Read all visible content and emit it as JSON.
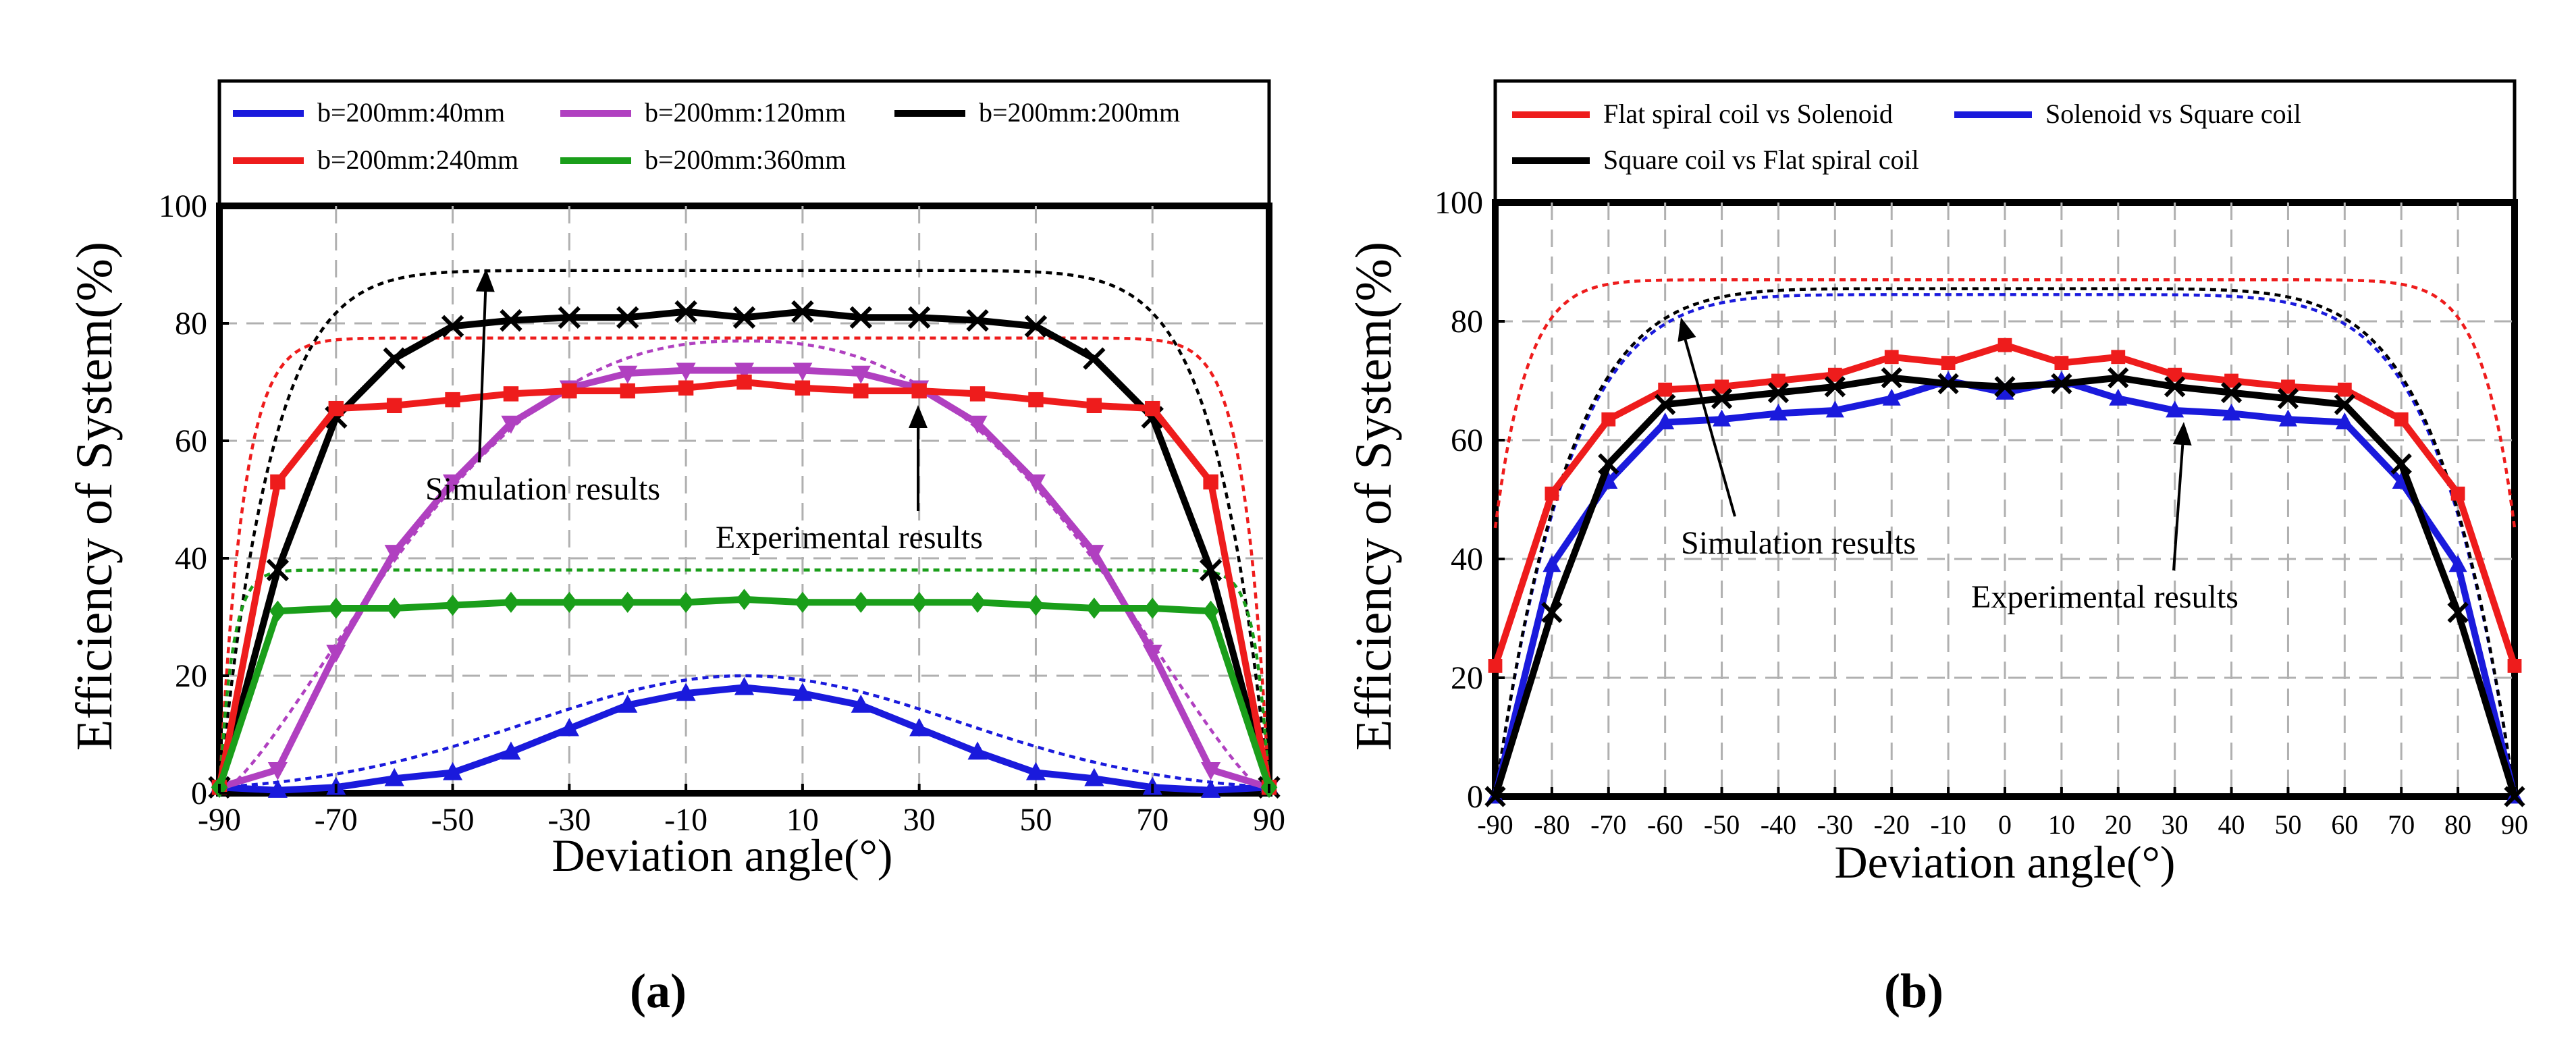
{
  "panels": [
    {
      "caption": "(a)",
      "chart_data": {
        "type": "line",
        "xlabel": "Deviation angle(°)",
        "ylabel": "Efficiency of System(%)",
        "xlim": [
          -90,
          90
        ],
        "ylim": [
          0,
          100
        ],
        "x_ticks": [
          -90,
          -70,
          -50,
          -30,
          -10,
          10,
          30,
          50,
          70,
          90
        ],
        "y_ticks": [
          0,
          20,
          40,
          60,
          80,
          100
        ],
        "grid": true,
        "legend_position": "top-box",
        "annotations": [
          {
            "text": "Simulation results",
            "target_x": -45,
            "target_y": 89
          },
          {
            "text": "Experimental results",
            "target_x": 35,
            "target_y": 66
          }
        ],
        "x": [
          -90,
          -80,
          -70,
          -60,
          -50,
          -40,
          -30,
          -20,
          -10,
          0,
          10,
          20,
          30,
          40,
          50,
          60,
          70,
          80,
          90
        ],
        "series": [
          {
            "name": "b=200mm:40mm",
            "color": "#1a1adc",
            "marker": "triangle",
            "values": [
              1,
              0.5,
              1,
              2.5,
              3.5,
              7,
              11,
              15,
              17,
              18,
              17,
              15,
              11,
              7,
              3.5,
              2.5,
              1,
              0.5,
              1
            ],
            "sim_peak": 20,
            "sim_shape": "gaussian"
          },
          {
            "name": "b=200mm:120mm",
            "color": "#b040c0",
            "marker": "triangle-down",
            "values": [
              1,
              4,
              24,
              41,
              53,
              63,
              69,
              71.5,
              72,
              72,
              72,
              71.5,
              69,
              63,
              53,
              41,
              24,
              4,
              1
            ],
            "sim_peak": 77,
            "sim_shape": "dome"
          },
          {
            "name": "b=200mm:200mm",
            "color": "#000000",
            "marker": "x",
            "values": [
              1,
              38,
              64,
              74,
              79.5,
              80.5,
              81,
              81,
              82,
              81,
              82,
              81,
              81,
              80.5,
              79.5,
              74,
              64,
              38,
              1
            ],
            "sim_peak": 89,
            "sim_shape": "flat"
          },
          {
            "name": "b=200mm:240mm",
            "color": "#ee1c1c",
            "marker": "square",
            "values": [
              1,
              53,
              65.5,
              66,
              67,
              68,
              68.5,
              68.5,
              69,
              70,
              69,
              68.5,
              68.5,
              68,
              67,
              66,
              65.5,
              53,
              1
            ],
            "sim_peak": 77.5,
            "sim_shape": "flat-wide"
          },
          {
            "name": "b=200mm:360mm",
            "color": "#1a9e1a",
            "marker": "diamond",
            "values": [
              1,
              31,
              31.5,
              31.5,
              32,
              32.5,
              32.5,
              32.5,
              32.5,
              33,
              32.5,
              32.5,
              32.5,
              32.5,
              32,
              31.5,
              31.5,
              31,
              1
            ],
            "sim_peak": 38,
            "sim_shape": "flat-vwide"
          }
        ]
      }
    },
    {
      "caption": "(b)",
      "chart_data": {
        "type": "line",
        "xlabel": "Deviation angle(°)",
        "ylabel": "Efficiency of System(%)",
        "xlim": [
          -90,
          90
        ],
        "ylim": [
          0,
          100
        ],
        "x_ticks": [
          -90,
          -80,
          -70,
          -60,
          -50,
          -40,
          -30,
          -20,
          -10,
          0,
          10,
          20,
          30,
          40,
          50,
          60,
          70,
          80,
          90
        ],
        "y_ticks": [
          0,
          20,
          40,
          60,
          80,
          100
        ],
        "grid": true,
        "legend_position": "top-box",
        "annotations": [
          {
            "text": "Simulation results",
            "target_x": -55,
            "target_y": 84
          },
          {
            "text": "Experimental results",
            "target_x": 30,
            "target_y": 65
          }
        ],
        "x": [
          -90,
          -80,
          -70,
          -60,
          -50,
          -40,
          -30,
          -20,
          -10,
          0,
          10,
          20,
          30,
          40,
          50,
          60,
          70,
          80,
          90
        ],
        "series": [
          {
            "name": "Flat spiral coil vs Solenoid",
            "color": "#ee1c1c",
            "marker": "square",
            "values": [
              22,
              51,
              63.5,
              68.5,
              69,
              70,
              71,
              74,
              73,
              76,
              73,
              74,
              71,
              70,
              69,
              68.5,
              63.5,
              51,
              22
            ],
            "sim_peak": 87,
            "sim_shape": "flat-wide-b"
          },
          {
            "name": "Solenoid vs Square coil",
            "color": "#1a1adc",
            "marker": "triangle",
            "values": [
              0,
              39,
              53,
              63,
              63.5,
              64.5,
              65,
              67,
              70,
              68,
              70,
              67,
              65,
              64.5,
              63.5,
              63,
              53,
              39,
              0
            ],
            "sim_peak": 84.5,
            "sim_shape": "flat-b"
          },
          {
            "name": "Square coil vs Flat spiral coil",
            "color": "#000000",
            "marker": "x",
            "values": [
              0,
              31,
              56,
              66,
              67,
              68,
              69,
              70.5,
              69.5,
              69,
              69.5,
              70.5,
              69,
              68,
              67,
              66,
              56,
              31,
              0
            ],
            "sim_peak": 85.5,
            "sim_shape": "flat-b"
          }
        ]
      }
    }
  ]
}
